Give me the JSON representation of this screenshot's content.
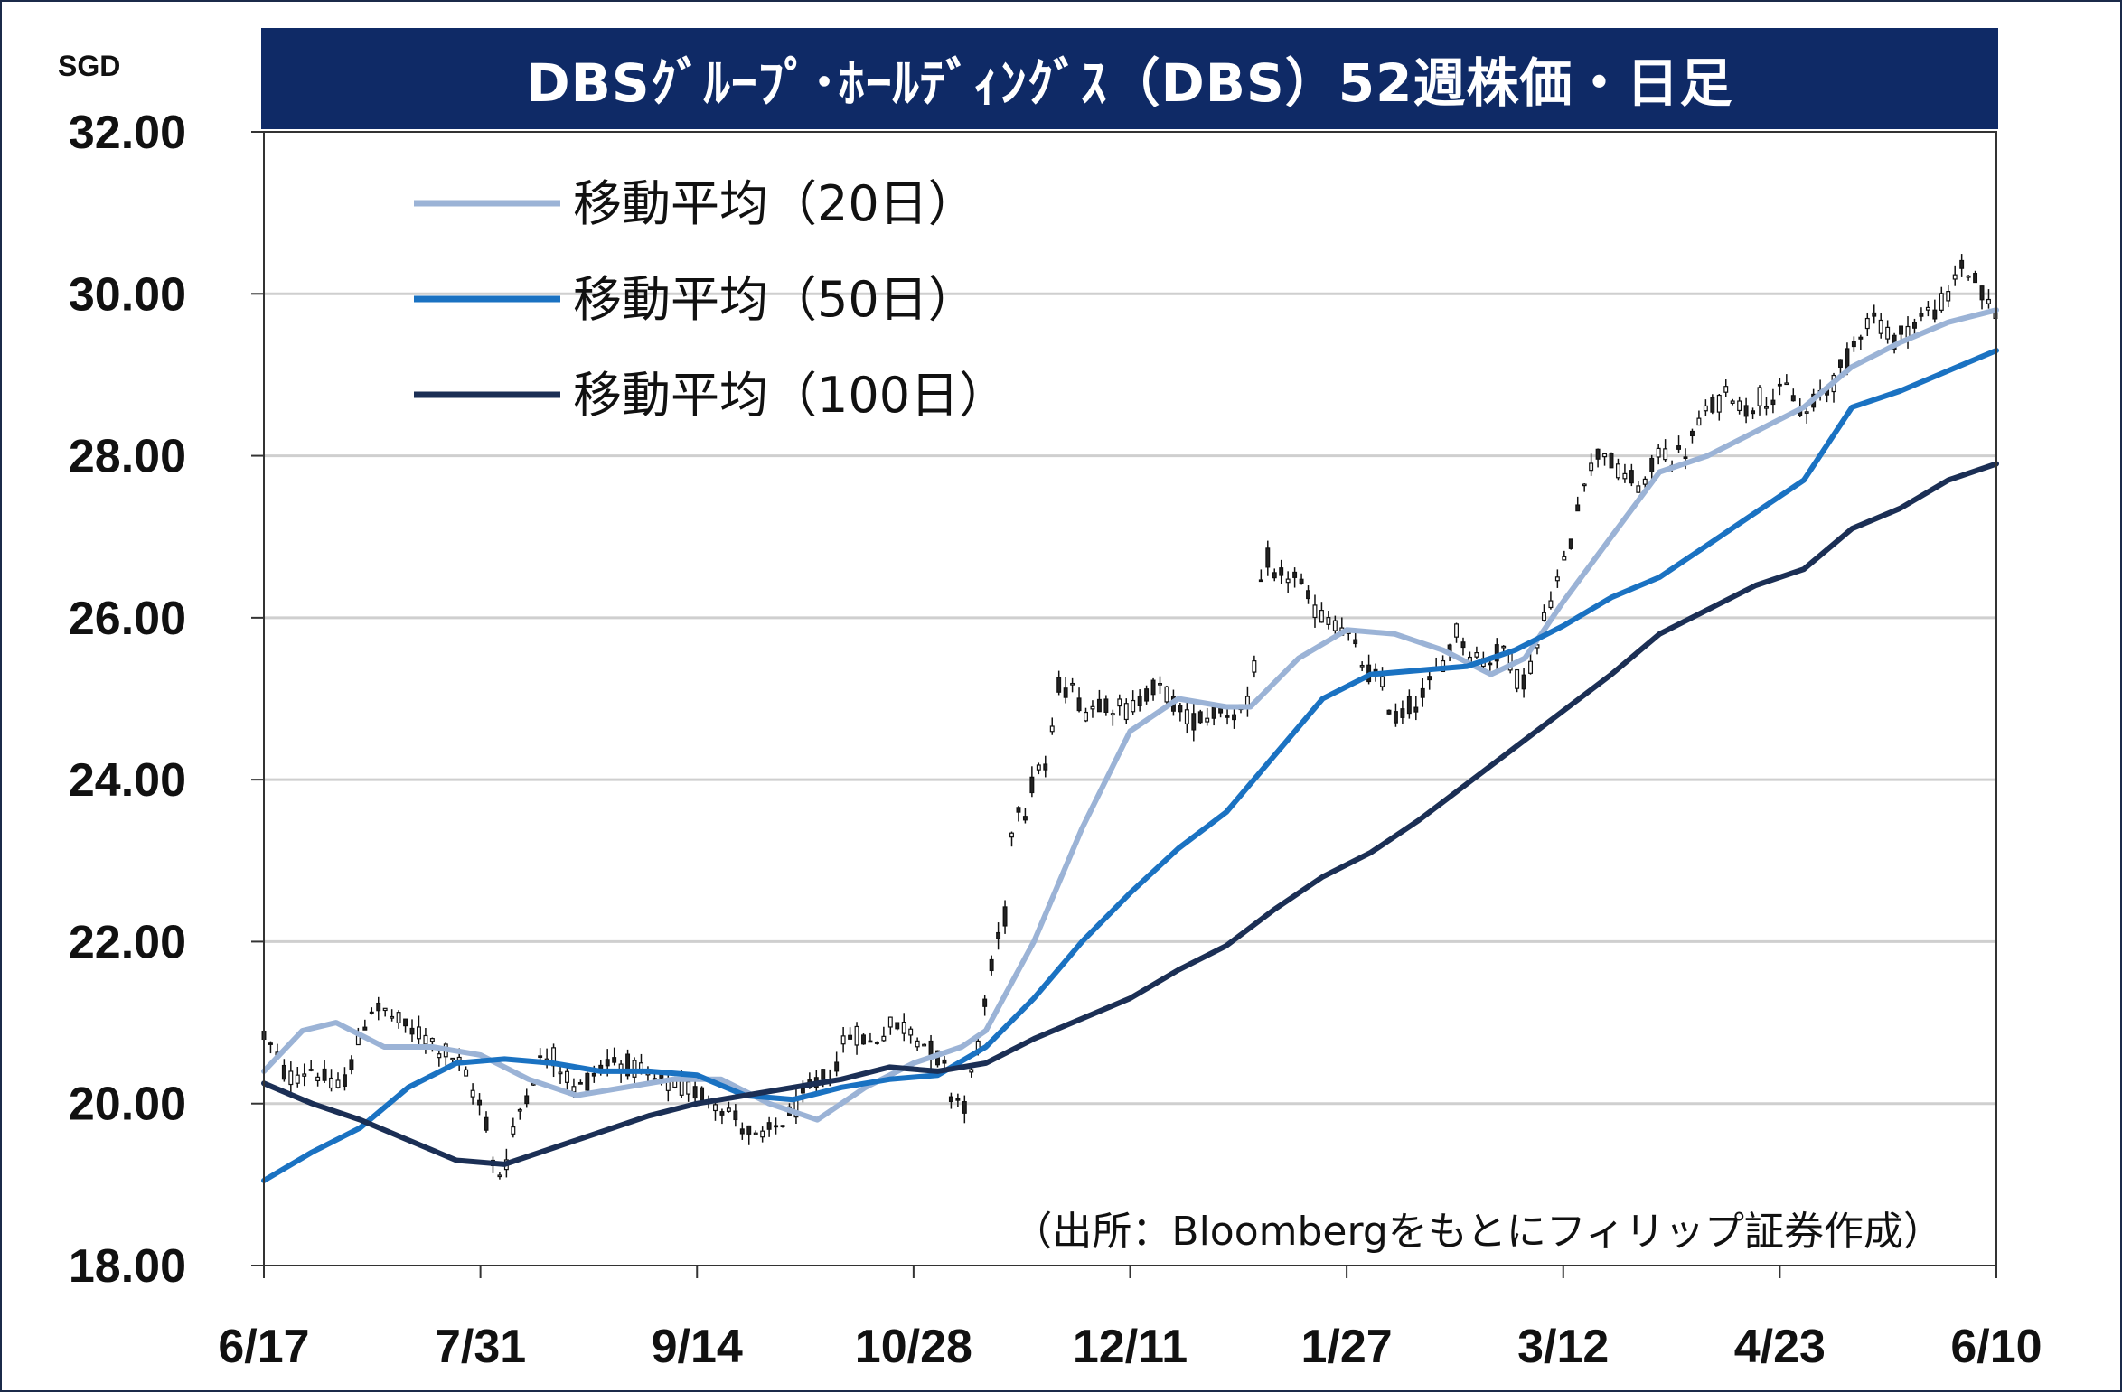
{
  "title": "DBSｸﾞﾙｰﾌﾟ･ﾎｰﾙﾃﾞｨﾝｸﾞｽ（DBS）52週株価・日足",
  "source": "（出所：Bloombergをもとにフィリップ証券作成）",
  "colors": {
    "ma20": "#9bb3d6",
    "ma50": "#1a72c2",
    "ma100": "#1b2f55",
    "candle": "#111111",
    "grid": "#cfcfcf",
    "title_bg": "#0f2a66"
  },
  "chart_data": {
    "type": "line",
    "title": "DBSｸﾞﾙｰﾌﾟ･ﾎｰﾙﾃﾞｨﾝｸﾞｽ（DBS）52週株価・日足",
    "ylabel": "SGD",
    "xlabel": "",
    "ylim": [
      18,
      32
    ],
    "yticks": [
      "32.00",
      "30.00",
      "28.00",
      "26.00",
      "24.00",
      "22.00",
      "20.00",
      "18.00"
    ],
    "xticks": [
      "6/17",
      "7/31",
      "9/14",
      "10/28",
      "12/11",
      "1/27",
      "3/12",
      "4/23",
      "6/10"
    ],
    "grid": true,
    "legend_position": "top-left",
    "series": [
      {
        "name": "移動平均（20日）",
        "color": "#9bb3d6",
        "points": [
          [
            0,
            20.4
          ],
          [
            8,
            20.9
          ],
          [
            15,
            21.0
          ],
          [
            25,
            20.7
          ],
          [
            35,
            20.7
          ],
          [
            45,
            20.6
          ],
          [
            55,
            20.3
          ],
          [
            65,
            20.1
          ],
          [
            75,
            20.2
          ],
          [
            85,
            20.3
          ],
          [
            95,
            20.3
          ],
          [
            105,
            20.0
          ],
          [
            115,
            19.8
          ],
          [
            125,
            20.2
          ],
          [
            135,
            20.5
          ],
          [
            145,
            20.7
          ],
          [
            150,
            20.9
          ],
          [
            160,
            22.0
          ],
          [
            170,
            23.4
          ],
          [
            180,
            24.6
          ],
          [
            190,
            25.0
          ],
          [
            200,
            24.9
          ],
          [
            205,
            24.9
          ],
          [
            215,
            25.5
          ],
          [
            225,
            25.85
          ],
          [
            235,
            25.8
          ],
          [
            245,
            25.6
          ],
          [
            255,
            25.3
          ],
          [
            262,
            25.5
          ],
          [
            270,
            26.2
          ],
          [
            280,
            27.0
          ],
          [
            290,
            27.8
          ],
          [
            300,
            28.0
          ],
          [
            310,
            28.3
          ],
          [
            320,
            28.6
          ],
          [
            330,
            29.1
          ],
          [
            340,
            29.4
          ],
          [
            350,
            29.65
          ],
          [
            360,
            29.8
          ]
        ]
      },
      {
        "name": "移動平均（50日）",
        "color": "#1a72c2",
        "points": [
          [
            0,
            19.05
          ],
          [
            10,
            19.4
          ],
          [
            20,
            19.7
          ],
          [
            30,
            20.2
          ],
          [
            40,
            20.5
          ],
          [
            50,
            20.55
          ],
          [
            60,
            20.5
          ],
          [
            70,
            20.4
          ],
          [
            80,
            20.4
          ],
          [
            90,
            20.35
          ],
          [
            100,
            20.1
          ],
          [
            110,
            20.05
          ],
          [
            120,
            20.2
          ],
          [
            130,
            20.3
          ],
          [
            140,
            20.35
          ],
          [
            150,
            20.7
          ],
          [
            160,
            21.3
          ],
          [
            170,
            22.0
          ],
          [
            180,
            22.6
          ],
          [
            190,
            23.15
          ],
          [
            200,
            23.6
          ],
          [
            210,
            24.3
          ],
          [
            220,
            25.0
          ],
          [
            230,
            25.3
          ],
          [
            240,
            25.35
          ],
          [
            250,
            25.4
          ],
          [
            260,
            25.6
          ],
          [
            270,
            25.9
          ],
          [
            280,
            26.25
          ],
          [
            290,
            26.5
          ],
          [
            300,
            26.9
          ],
          [
            310,
            27.3
          ],
          [
            320,
            27.7
          ],
          [
            330,
            28.6
          ],
          [
            340,
            28.8
          ],
          [
            350,
            29.05
          ],
          [
            360,
            29.3
          ]
        ]
      },
      {
        "name": "移動平均（100日）",
        "color": "#1b2f55",
        "points": [
          [
            0,
            20.25
          ],
          [
            10,
            20.0
          ],
          [
            20,
            19.8
          ],
          [
            30,
            19.55
          ],
          [
            40,
            19.3
          ],
          [
            50,
            19.25
          ],
          [
            60,
            19.45
          ],
          [
            70,
            19.65
          ],
          [
            80,
            19.85
          ],
          [
            90,
            20.0
          ],
          [
            100,
            20.1
          ],
          [
            110,
            20.2
          ],
          [
            120,
            20.3
          ],
          [
            130,
            20.45
          ],
          [
            140,
            20.4
          ],
          [
            150,
            20.5
          ],
          [
            160,
            20.8
          ],
          [
            170,
            21.05
          ],
          [
            180,
            21.3
          ],
          [
            190,
            21.65
          ],
          [
            200,
            21.95
          ],
          [
            210,
            22.4
          ],
          [
            220,
            22.8
          ],
          [
            230,
            23.1
          ],
          [
            240,
            23.5
          ],
          [
            250,
            23.95
          ],
          [
            260,
            24.4
          ],
          [
            270,
            24.85
          ],
          [
            280,
            25.3
          ],
          [
            290,
            25.8
          ],
          [
            300,
            26.1
          ],
          [
            310,
            26.4
          ],
          [
            320,
            26.6
          ],
          [
            330,
            27.1
          ],
          [
            340,
            27.35
          ],
          [
            350,
            27.7
          ],
          [
            360,
            27.9
          ]
        ]
      }
    ],
    "price_path": [
      [
        0,
        20.85
      ],
      [
        5,
        20.3
      ],
      [
        10,
        20.45
      ],
      [
        15,
        20.15
      ],
      [
        18,
        20.45
      ],
      [
        22,
        21.2
      ],
      [
        26,
        21.1
      ],
      [
        30,
        20.9
      ],
      [
        33,
        20.85
      ],
      [
        36,
        20.7
      ],
      [
        40,
        20.55
      ],
      [
        43,
        20.2
      ],
      [
        46,
        19.85
      ],
      [
        48,
        19.1
      ],
      [
        50,
        19.2
      ],
      [
        53,
        19.9
      ],
      [
        57,
        20.5
      ],
      [
        60,
        20.6
      ],
      [
        65,
        20.15
      ],
      [
        68,
        20.35
      ],
      [
        72,
        20.55
      ],
      [
        75,
        20.5
      ],
      [
        80,
        20.3
      ],
      [
        85,
        20.2
      ],
      [
        90,
        20.15
      ],
      [
        95,
        20.0
      ],
      [
        100,
        19.7
      ],
      [
        103,
        19.5
      ],
      [
        106,
        19.7
      ],
      [
        110,
        19.9
      ],
      [
        114,
        20.2
      ],
      [
        118,
        20.4
      ],
      [
        122,
        20.9
      ],
      [
        126,
        20.75
      ],
      [
        130,
        20.95
      ],
      [
        134,
        20.95
      ],
      [
        138,
        20.7
      ],
      [
        141,
        20.5
      ],
      [
        143,
        20.1
      ],
      [
        146,
        20.0
      ],
      [
        149,
        20.95
      ],
      [
        152,
        21.9
      ],
      [
        154,
        22.3
      ],
      [
        156,
        23.8
      ],
      [
        158,
        23.6
      ],
      [
        161,
        24.2
      ],
      [
        163,
        24.1
      ],
      [
        165,
        25.2
      ],
      [
        168,
        25.1
      ],
      [
        171,
        24.85
      ],
      [
        174,
        25.0
      ],
      [
        177,
        24.9
      ],
      [
        180,
        24.85
      ],
      [
        184,
        25.15
      ],
      [
        188,
        25.05
      ],
      [
        191,
        24.75
      ],
      [
        194,
        24.75
      ],
      [
        198,
        24.85
      ],
      [
        202,
        24.85
      ],
      [
        205,
        24.9
      ],
      [
        208,
        26.85
      ],
      [
        210,
        26.45
      ],
      [
        214,
        26.55
      ],
      [
        217,
        26.2
      ],
      [
        220,
        26.0
      ],
      [
        223,
        25.95
      ],
      [
        226,
        25.7
      ],
      [
        229,
        25.35
      ],
      [
        232,
        25.2
      ],
      [
        235,
        24.75
      ],
      [
        238,
        24.9
      ],
      [
        241,
        25.05
      ],
      [
        244,
        25.35
      ],
      [
        248,
        25.85
      ],
      [
        251,
        25.55
      ],
      [
        254,
        25.45
      ],
      [
        258,
        25.65
      ],
      [
        261,
        25.15
      ],
      [
        264,
        25.5
      ],
      [
        267,
        26.2
      ],
      [
        270,
        26.6
      ],
      [
        272,
        27.05
      ],
      [
        274,
        27.75
      ],
      [
        276,
        27.85
      ],
      [
        278,
        28.15
      ],
      [
        281,
        27.8
      ],
      [
        284,
        27.7
      ],
      [
        287,
        27.6
      ],
      [
        290,
        28.1
      ],
      [
        293,
        27.95
      ],
      [
        296,
        28.1
      ],
      [
        299,
        28.5
      ],
      [
        302,
        28.65
      ],
      [
        305,
        28.8
      ],
      [
        308,
        28.55
      ],
      [
        311,
        28.75
      ],
      [
        314,
        28.7
      ],
      [
        317,
        28.85
      ],
      [
        320,
        28.45
      ],
      [
        323,
        28.75
      ],
      [
        326,
        28.9
      ],
      [
        329,
        29.2
      ],
      [
        332,
        29.6
      ],
      [
        335,
        29.75
      ],
      [
        338,
        29.4
      ],
      [
        341,
        29.55
      ],
      [
        344,
        29.7
      ],
      [
        347,
        29.8
      ],
      [
        350,
        29.95
      ],
      [
        352,
        30.35
      ],
      [
        354,
        30.3
      ],
      [
        356,
        30.1
      ],
      [
        358,
        29.85
      ],
      [
        360,
        29.8
      ]
    ]
  }
}
